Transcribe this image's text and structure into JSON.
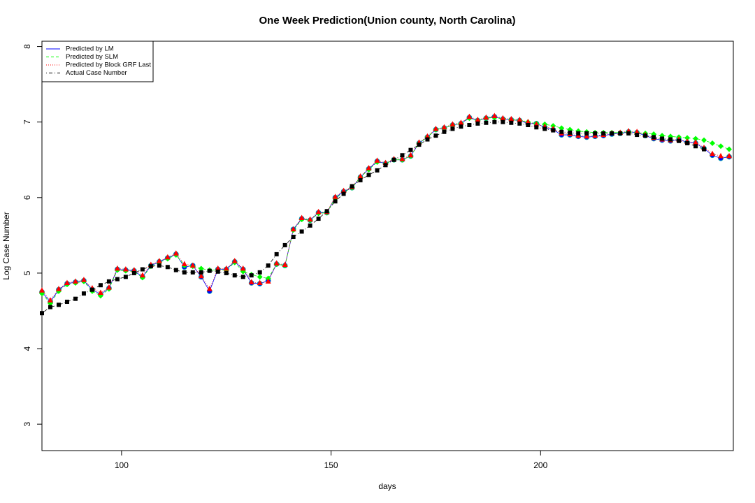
{
  "chart_data": {
    "type": "line",
    "title": "One Week Prediction(Union county, North Carolina)",
    "x_label": "days",
    "y_label": "Log Case Number",
    "xlim": [
      81,
      246
    ],
    "ylim": [
      2.65,
      8.07
    ],
    "xticks": [
      100,
      150,
      200
    ],
    "yticks": [
      3,
      4,
      5,
      6,
      7,
      8
    ],
    "legend": "top-left",
    "x": [
      81,
      83,
      85,
      87,
      89,
      91,
      93,
      95,
      97,
      99,
      101,
      103,
      105,
      107,
      109,
      111,
      113,
      115,
      117,
      119,
      121,
      123,
      125,
      127,
      129,
      131,
      133,
      135,
      137,
      139,
      141,
      143,
      145,
      147,
      149,
      151,
      153,
      155,
      157,
      159,
      161,
      163,
      165,
      167,
      169,
      171,
      173,
      175,
      177,
      179,
      181,
      183,
      185,
      187,
      189,
      191,
      193,
      195,
      197,
      199,
      201,
      203,
      205,
      207,
      209,
      211,
      213,
      215,
      217,
      219,
      221,
      223,
      225,
      227,
      229,
      231,
      233,
      235,
      237,
      239,
      241,
      243,
      245
    ],
    "series": [
      {
        "name": "Predicted by LM",
        "color": "#0000ff",
        "dash": "solid",
        "marker": "circle",
        "values": [
          4.75,
          4.62,
          4.78,
          4.86,
          4.88,
          4.9,
          4.78,
          4.72,
          4.8,
          5.05,
          5.04,
          5.03,
          4.95,
          5.1,
          5.15,
          5.2,
          5.25,
          5.08,
          5.1,
          4.95,
          4.76,
          5.05,
          5.05,
          5.15,
          5.05,
          4.87,
          4.86,
          4.9,
          5.12,
          5.1,
          5.58,
          5.72,
          5.7,
          5.8,
          5.8,
          6.0,
          6.08,
          6.13,
          6.27,
          6.38,
          6.48,
          6.45,
          6.5,
          6.5,
          6.55,
          6.72,
          6.8,
          6.9,
          6.92,
          6.96,
          6.98,
          7.06,
          7.02,
          7.05,
          7.07,
          7.04,
          7.03,
          7.02,
          6.98,
          6.98,
          6.93,
          6.9,
          6.83,
          6.83,
          6.81,
          6.8,
          6.81,
          6.82,
          6.84,
          6.85,
          6.87,
          6.86,
          6.82,
          6.78,
          6.76,
          6.75,
          6.77,
          6.73,
          6.72,
          6.65,
          6.56,
          6.52,
          6.54
        ]
      },
      {
        "name": "Predicted by SLM",
        "color": "#00ff00",
        "dash": "dashed",
        "marker": "diamond",
        "values": [
          4.73,
          4.6,
          4.76,
          4.85,
          4.87,
          4.89,
          4.76,
          4.7,
          4.79,
          5.04,
          5.03,
          5.02,
          4.94,
          5.09,
          5.14,
          5.19,
          5.24,
          5.1,
          5.09,
          5.06,
          5.04,
          5.04,
          5.04,
          5.14,
          5.02,
          4.98,
          4.95,
          4.93,
          5.12,
          5.1,
          5.57,
          5.71,
          5.7,
          5.79,
          5.8,
          5.99,
          6.07,
          6.13,
          6.27,
          6.37,
          6.47,
          6.45,
          6.5,
          6.5,
          6.55,
          6.72,
          6.8,
          6.9,
          6.92,
          6.96,
          6.98,
          7.05,
          7.02,
          7.05,
          7.06,
          7.04,
          7.03,
          7.02,
          7.0,
          6.98,
          6.97,
          6.95,
          6.92,
          6.9,
          6.88,
          6.87,
          6.86,
          6.86,
          6.86,
          6.86,
          6.87,
          6.86,
          6.85,
          6.84,
          6.82,
          6.81,
          6.8,
          6.79,
          6.78,
          6.76,
          6.72,
          6.68,
          6.64
        ]
      },
      {
        "name": "Predicted by Block GRF Last",
        "color": "#ff0000",
        "dash": "dotted",
        "marker": "triangle",
        "values": [
          4.77,
          4.64,
          4.79,
          4.87,
          4.89,
          4.91,
          4.8,
          4.74,
          4.81,
          5.06,
          5.05,
          5.04,
          4.97,
          5.11,
          5.16,
          5.21,
          5.26,
          5.12,
          5.1,
          4.96,
          4.79,
          5.06,
          5.06,
          5.16,
          5.06,
          4.88,
          4.87,
          4.89,
          5.13,
          5.11,
          5.58,
          5.73,
          5.71,
          5.81,
          5.81,
          6.01,
          6.09,
          6.14,
          6.28,
          6.39,
          6.49,
          6.46,
          6.51,
          6.51,
          6.56,
          6.73,
          6.81,
          6.91,
          6.93,
          6.97,
          6.99,
          7.07,
          7.03,
          7.06,
          7.08,
          7.05,
          7.04,
          7.03,
          7.0,
          6.97,
          6.94,
          6.91,
          6.85,
          6.84,
          6.82,
          6.81,
          6.82,
          6.83,
          6.85,
          6.86,
          6.88,
          6.87,
          6.83,
          6.79,
          6.77,
          6.76,
          6.77,
          6.74,
          6.73,
          6.66,
          6.58,
          6.55,
          6.55
        ]
      },
      {
        "name": "Actual Case Number",
        "color": "#000000",
        "dash": "dotdash",
        "marker": "square",
        "values": [
          4.47,
          4.55,
          4.58,
          4.62,
          4.66,
          4.73,
          4.78,
          4.84,
          4.89,
          4.92,
          4.95,
          5.0,
          5.05,
          5.09,
          5.1,
          5.08,
          5.04,
          5.01,
          5.01,
          5.01,
          5.03,
          5.02,
          5.0,
          4.97,
          4.95,
          4.97,
          5.01,
          5.1,
          5.25,
          5.37,
          5.48,
          5.55,
          5.63,
          5.72,
          5.82,
          5.95,
          6.05,
          6.15,
          6.23,
          6.3,
          6.36,
          6.43,
          6.5,
          6.56,
          6.63,
          6.7,
          6.77,
          6.82,
          6.87,
          6.91,
          6.94,
          6.96,
          6.98,
          6.99,
          7.0,
          7.0,
          6.99,
          6.98,
          6.96,
          6.93,
          6.91,
          6.89,
          6.87,
          6.86,
          6.85,
          6.85,
          6.85,
          6.85,
          6.85,
          6.85,
          6.85,
          6.83,
          6.82,
          6.8,
          6.78,
          6.77,
          6.75,
          6.72,
          6.68,
          6.64,
          null,
          null,
          null
        ]
      }
    ]
  }
}
